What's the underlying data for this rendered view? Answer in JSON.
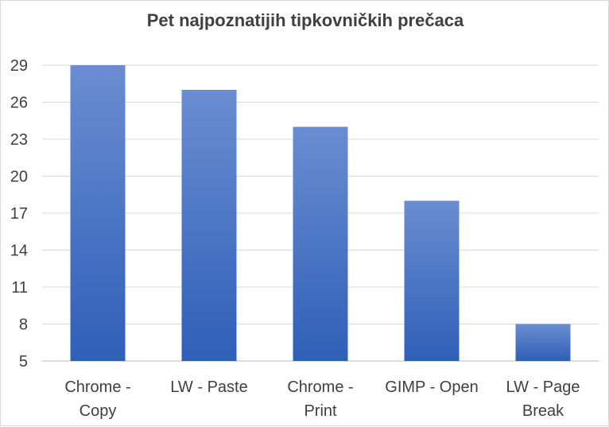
{
  "chart_data": {
    "type": "bar",
    "title": "Pet najpoznatijih tipkovničkih prečaca",
    "categories": [
      [
        "Chrome -",
        "Copy"
      ],
      [
        "LW - Paste"
      ],
      [
        "Chrome -",
        "Print"
      ],
      [
        "GIMP - Open"
      ],
      [
        "LW - Page",
        "Break"
      ]
    ],
    "values": [
      29,
      27,
      24,
      18,
      8
    ],
    "ylim": [
      5,
      29
    ],
    "yticks": [
      5,
      8,
      11,
      14,
      17,
      20,
      23,
      26,
      29
    ],
    "grid": true,
    "xlabel": "",
    "ylabel": "",
    "colors": {
      "bar_top": "#6a8dd1",
      "bar_bottom": "#2f5fb8",
      "grid": "#d9d9d9",
      "text": "#404040"
    }
  }
}
